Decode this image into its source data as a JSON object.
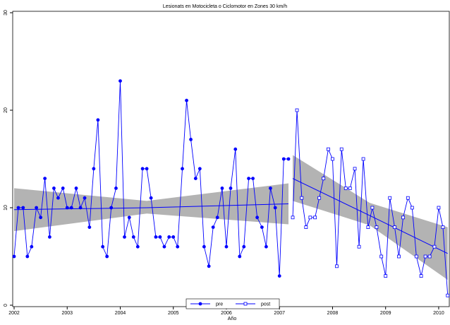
{
  "chart_data": {
    "type": "line",
    "title": "Lesionats en Motocicleta o Ciclomotor en Zones 30 km/h",
    "xlabel": "Año",
    "xlim": [
      2002,
      2010.2
    ],
    "ylim": [
      0,
      30
    ],
    "xticks": [
      2002,
      2003,
      2004,
      2005,
      2006,
      2007,
      2008,
      2009,
      2010
    ],
    "yticks": [
      0,
      10,
      20,
      30
    ],
    "series": [
      {
        "name": "pre",
        "color": "#0000ff",
        "marker": "circle",
        "x": [
          2002.0,
          2002.08,
          2002.17,
          2002.25,
          2002.33,
          2002.42,
          2002.5,
          2002.58,
          2002.67,
          2002.75,
          2002.83,
          2002.92,
          2003.0,
          2003.08,
          2003.17,
          2003.25,
          2003.33,
          2003.42,
          2003.5,
          2003.58,
          2003.67,
          2003.75,
          2003.83,
          2003.92,
          2004.0,
          2004.08,
          2004.17,
          2004.25,
          2004.33,
          2004.42,
          2004.5,
          2004.58,
          2004.67,
          2004.75,
          2004.83,
          2004.92,
          2005.0,
          2005.08,
          2005.17,
          2005.25,
          2005.33,
          2005.42,
          2005.5,
          2005.58,
          2005.67,
          2005.75,
          2005.83,
          2005.92,
          2006.0,
          2006.08,
          2006.17,
          2006.25,
          2006.33,
          2006.42,
          2006.5,
          2006.58,
          2006.67,
          2006.75,
          2006.83,
          2006.92,
          2007.0,
          2007.08,
          2007.17
        ],
        "values": [
          5,
          10,
          10,
          5,
          6,
          10,
          9,
          13,
          7,
          12,
          11,
          12,
          10,
          10,
          12,
          10,
          11,
          8,
          14,
          19,
          6,
          5,
          10,
          12,
          23,
          7,
          9,
          7,
          6,
          14,
          14,
          11,
          7,
          7,
          6,
          7,
          7,
          6,
          14,
          21,
          17,
          13,
          14,
          6,
          4,
          8,
          9,
          12,
          6,
          12,
          16,
          5,
          6,
          13,
          13,
          9,
          8,
          6,
          12,
          10,
          3,
          15,
          15
        ]
      },
      {
        "name": "post",
        "color": "#0000ff",
        "marker": "square",
        "x": [
          2007.25,
          2007.33,
          2007.42,
          2007.5,
          2007.58,
          2007.67,
          2007.75,
          2007.83,
          2007.92,
          2008.0,
          2008.08,
          2008.17,
          2008.25,
          2008.33,
          2008.42,
          2008.5,
          2008.58,
          2008.67,
          2008.75,
          2008.83,
          2008.92,
          2009.0,
          2009.08,
          2009.17,
          2009.25,
          2009.33,
          2009.42,
          2009.5,
          2009.58,
          2009.67,
          2009.75,
          2009.83,
          2009.92,
          2010.0,
          2010.08,
          2010.17
        ],
        "values": [
          9,
          20,
          11,
          8,
          9,
          9,
          11,
          13,
          16,
          15,
          4,
          16,
          12,
          12,
          14,
          6,
          15,
          8,
          10,
          8,
          5,
          3,
          11,
          8,
          5,
          9,
          11,
          10,
          5,
          3,
          5,
          5,
          6,
          10,
          8,
          1
        ]
      }
    ],
    "fits": [
      {
        "x": [
          2002,
          2004.5,
          2007.17
        ],
        "values": [
          9.8,
          10.0,
          10.4
        ],
        "lower": [
          7.6,
          9.4,
          8.3
        ],
        "upper": [
          12.0,
          10.7,
          12.5
        ]
      },
      {
        "x": [
          2007.25,
          2008.7,
          2010.17
        ],
        "values": [
          13.0,
          9.2,
          5.3
        ],
        "lower": [
          10.7,
          8.2,
          2.6
        ],
        "upper": [
          15.4,
          10.5,
          8.0
        ]
      }
    ],
    "band_color": "#b3b3b3",
    "legend": "bottom"
  }
}
